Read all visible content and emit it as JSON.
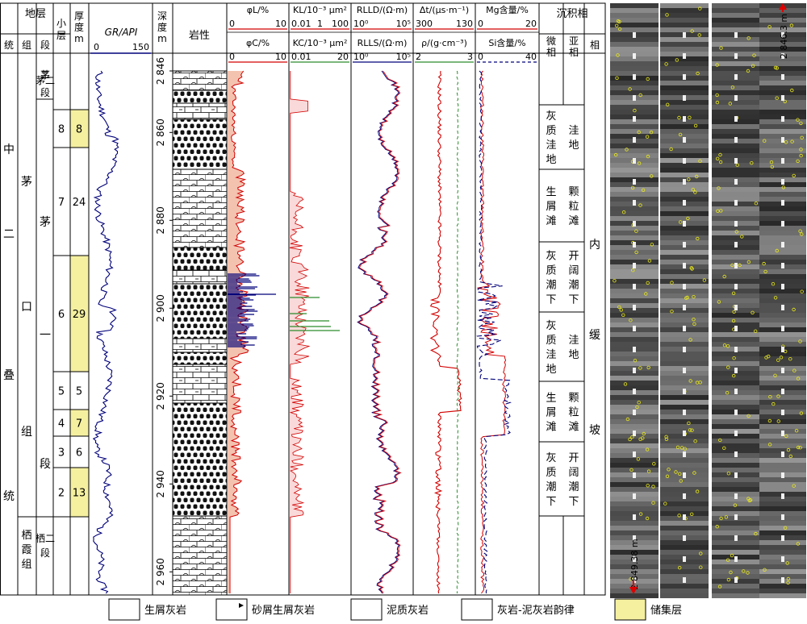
{
  "header": {
    "strat": "地层",
    "system": "统",
    "group": "组",
    "section": "段",
    "sublayer": "小层",
    "thickness": "厚度/m",
    "gr": "GR/API",
    "gr_min": "0",
    "gr_max": "150",
    "depth": "深度/m",
    "lith": "岩性",
    "phiL": "φL/%",
    "phiL_min": "0",
    "phiL_max": "10",
    "phiC": "φC/%",
    "phiC_min": "0",
    "phiC_max": "10",
    "KL": "KL/10⁻³ μm²",
    "KL_min": "0.01",
    "KL_mid": "1",
    "KL_max": "100",
    "KC": "KC/10⁻³ μm²",
    "KC_min": "0.01",
    "KC_max": "20",
    "RLLD": "RLLD/(Ω·m)",
    "RLLD_min": "10⁰",
    "RLLD_max": "10⁵",
    "RLLS": "RLLS/(Ω·m)",
    "RLLS_min": "10⁰",
    "RLLS_max": "10⁵",
    "dt": "Δt/(μs·m⁻¹)",
    "dt_min": "300",
    "dt_max": "130",
    "rho": "ρ/(g·cm⁻³)",
    "rho_min": "2",
    "rho_max": "3",
    "mg": "Mg含量/%",
    "mg_min": "0",
    "mg_max": "20",
    "si": "Si含量/%",
    "si_min": "0",
    "si_max": "40",
    "facies": "沉积相",
    "micro": "微相",
    "sub": "亚相",
    "phase": "相"
  },
  "strat": {
    "system": "中二叠统",
    "group_mk": "茅口组",
    "group_qx": "栖霞组",
    "sec_m2": "茅二段",
    "sec_m1": "茅一段",
    "sec_q2": "栖二段"
  },
  "sublayers": [
    {
      "no": "8",
      "thick": "8",
      "reservoir": true
    },
    {
      "no": "7",
      "thick": "24",
      "reservoir": false
    },
    {
      "no": "6",
      "thick": "29",
      "reservoir": true
    },
    {
      "no": "5",
      "thick": "5",
      "reservoir": false
    },
    {
      "no": "4",
      "thick": "7",
      "reservoir": true
    },
    {
      "no": "3",
      "thick": "6",
      "reservoir": false
    },
    {
      "no": "2",
      "thick": "13",
      "reservoir": true
    }
  ],
  "depth_ticks": [
    "2 846",
    "2 860",
    "2 880",
    "2 900",
    "2 920",
    "2 940",
    "2 960"
  ],
  "facies_rows": [
    {
      "micro": "灰质洼地",
      "sub": "洼地"
    },
    {
      "micro": "生屑滩",
      "sub": "颗粒滩"
    },
    {
      "micro": "灰质潮下",
      "sub": "开阔潮下"
    },
    {
      "micro": "灰质洼地",
      "sub": "洼地"
    },
    {
      "micro": "生屑滩",
      "sub": "颗粒滩"
    },
    {
      "micro": "灰质潮下",
      "sub": "开阔潮下"
    }
  ],
  "phase": "内缓坡",
  "core_labels": [
    "2 846.3 m",
    "2 849.38 m"
  ],
  "legend": [
    "生屑灰岩",
    "砂屑生屑灰岩",
    "泥质灰岩",
    "灰岩-泥灰岩韵律",
    "储集层"
  ],
  "colors": {
    "reservoir": "#f5f0a0",
    "phi": "#f3c3b0",
    "curve_red": "#d40000",
    "curve_blue": "#00007a",
    "curve_green": "#2c8c2c"
  }
}
